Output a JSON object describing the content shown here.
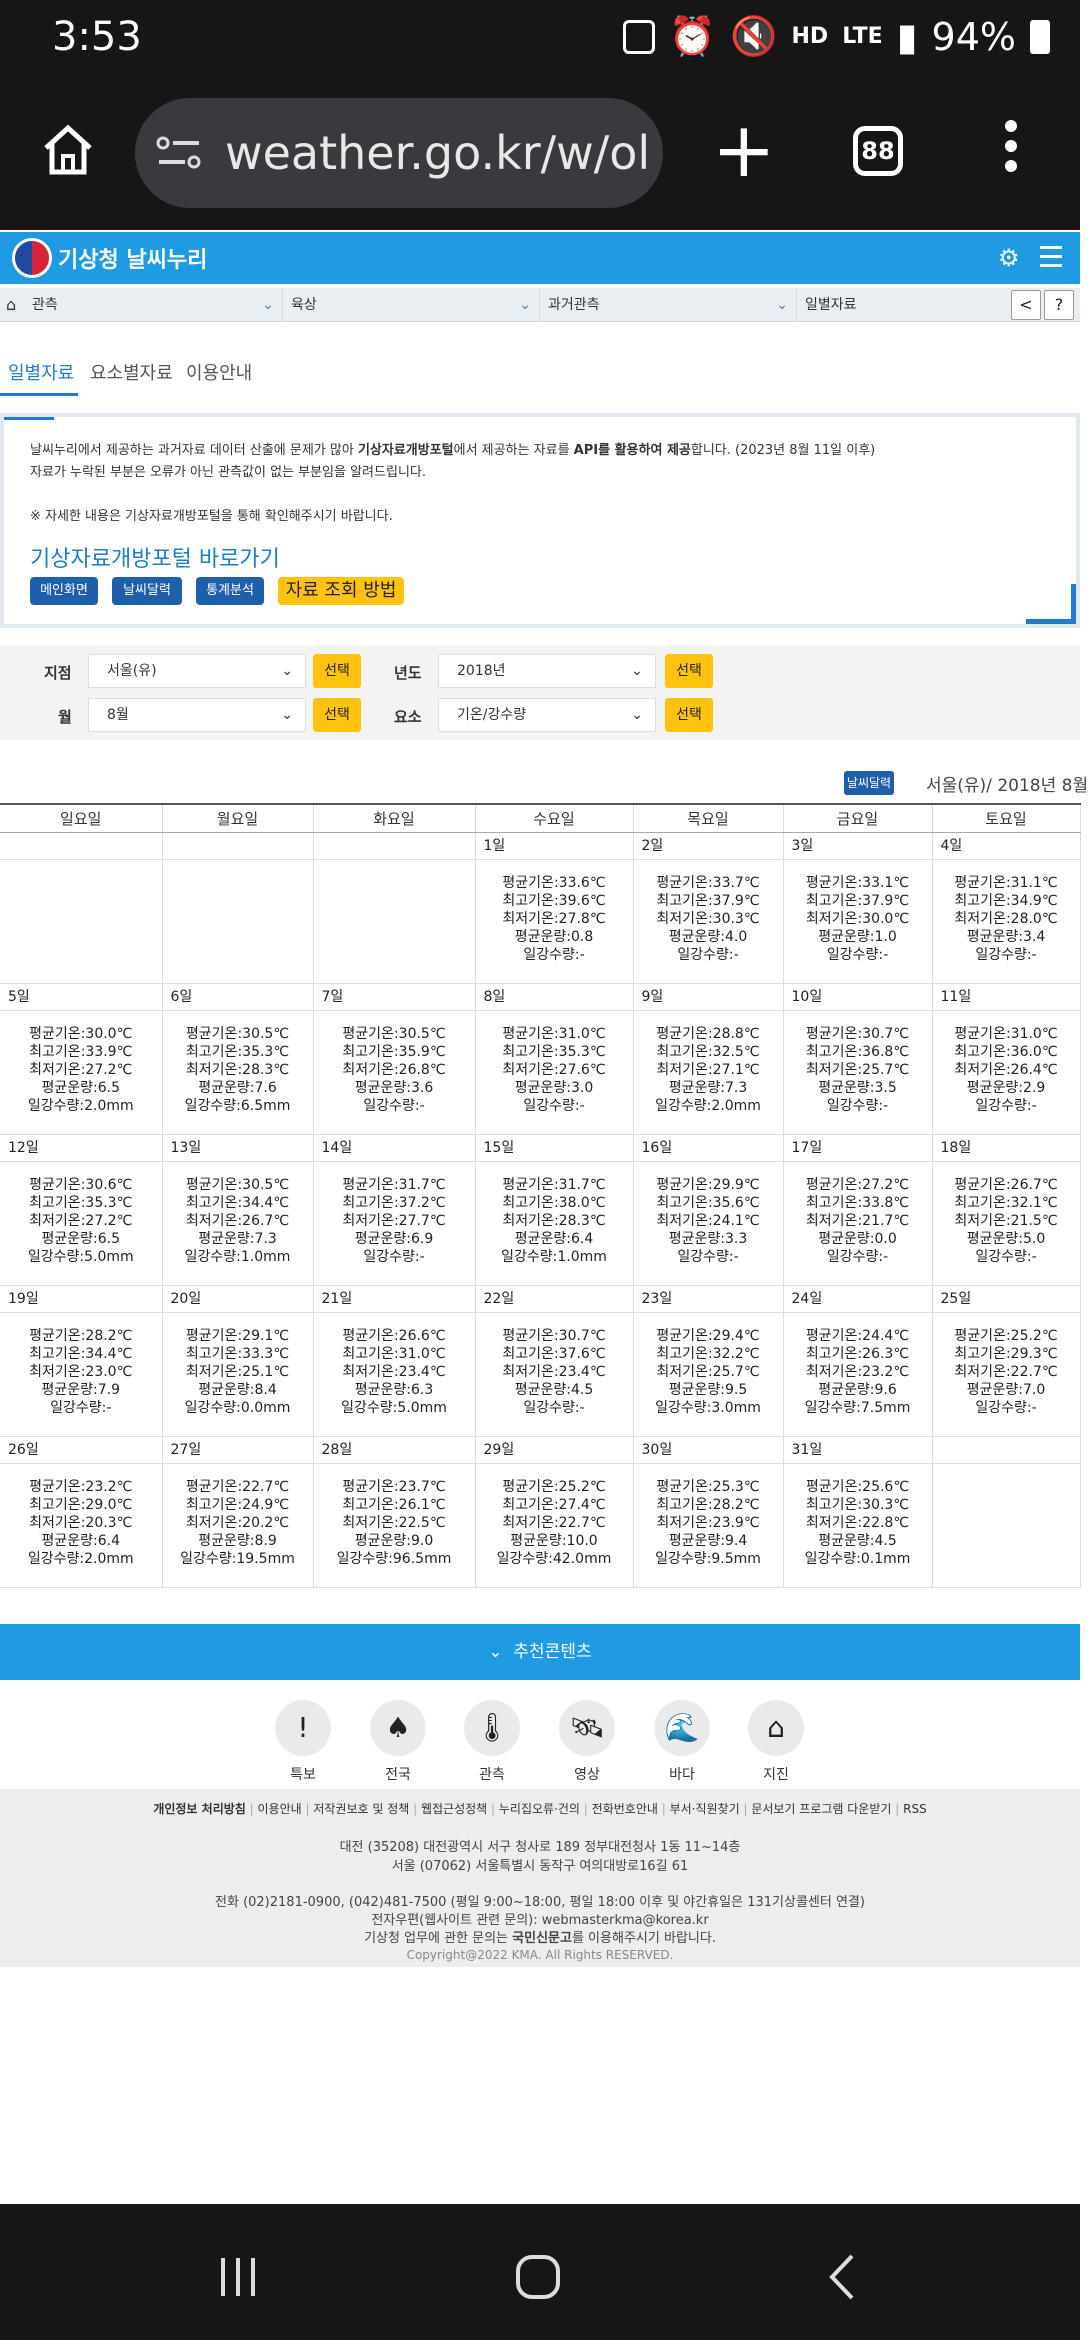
{
  "status": {
    "time": "3:53",
    "battery": "94%",
    "net1": "HD",
    "net2": "LTE"
  },
  "browser": {
    "url": "weather.go.kr/w/ol",
    "tabs_count": "88"
  },
  "site": {
    "name": "기상청 날씨누리"
  },
  "nav": {
    "seg1": "관측",
    "seg2": "육상",
    "seg3": "과거관측",
    "seg4": "일별자료",
    "help": "?"
  },
  "tabs": [
    "일별자료",
    "요소별자료",
    "이용안내"
  ],
  "notice": {
    "line1_a": "날씨누리에서 제공하는 과거자료 데이터 산출에 문제가 많아 ",
    "line1_b": "기상자료개방포털",
    "line1_c": "에서 제공하는 자료를 ",
    "line1_d": "API를 활용하여 제공",
    "line1_e": "합니다. (2023년 8월 11일 이후)",
    "line2": "자료가 누락된 부분은 오류가 아닌 관측값이 없는 부분임을 알려드립니다.",
    "line3": "※ 자세한 내용은 기상자료개방포털을 통해 확인해주시기 바랍니다.",
    "title": "기상자료개방포털 바로가기",
    "btn_main": "메인화면",
    "btn_cal": "날씨달력",
    "btn_stat": "통계분석",
    "btn_howto": "자료 조회 방법"
  },
  "filters": {
    "station_label": "지점",
    "station_value": "서울(유)",
    "year_label": "년도",
    "year_value": "2018년",
    "month_label": "월",
    "month_value": "8월",
    "element_label": "요소",
    "element_value": "기온/강수량",
    "select_label": "선택"
  },
  "calendar_header": {
    "badge": "날씨달력",
    "info": "서울(유)/ 2018년 8월"
  },
  "weekdays": [
    "일요일",
    "월요일",
    "화요일",
    "수요일",
    "목요일",
    "금요일",
    "토요일"
  ],
  "field_labels": {
    "avg": "평균기온",
    "max": "최고기온",
    "min": "최저기온",
    "cloud": "평균운량",
    "rain": "일강수량"
  },
  "weeks": [
    [
      null,
      null,
      null,
      {
        "day": "1일",
        "avg": "33.6℃",
        "max": "39.6℃",
        "min": "27.8℃",
        "cloud": "0.8",
        "rain": "-"
      },
      {
        "day": "2일",
        "avg": "33.7℃",
        "max": "37.9℃",
        "min": "30.3℃",
        "cloud": "4.0",
        "rain": "-"
      },
      {
        "day": "3일",
        "avg": "33.1℃",
        "max": "37.9℃",
        "min": "30.0℃",
        "cloud": "1.0",
        "rain": "-"
      },
      {
        "day": "4일",
        "avg": "31.1℃",
        "max": "34.9℃",
        "min": "28.0℃",
        "cloud": "3.4",
        "rain": "-"
      }
    ],
    [
      {
        "day": "5일",
        "avg": "30.0℃",
        "max": "33.9℃",
        "min": "27.2℃",
        "cloud": "6.5",
        "rain": "2.0mm"
      },
      {
        "day": "6일",
        "avg": "30.5℃",
        "max": "35.3℃",
        "min": "28.3℃",
        "cloud": "7.6",
        "rain": "6.5mm"
      },
      {
        "day": "7일",
        "avg": "30.5℃",
        "max": "35.9℃",
        "min": "26.8℃",
        "cloud": "3.6",
        "rain": "-"
      },
      {
        "day": "8일",
        "avg": "31.0℃",
        "max": "35.3℃",
        "min": "27.6℃",
        "cloud": "3.0",
        "rain": "-"
      },
      {
        "day": "9일",
        "avg": "28.8℃",
        "max": "32.5℃",
        "min": "27.1℃",
        "cloud": "7.3",
        "rain": "2.0mm"
      },
      {
        "day": "10일",
        "avg": "30.7℃",
        "max": "36.8℃",
        "min": "25.7℃",
        "cloud": "3.5",
        "rain": "-"
      },
      {
        "day": "11일",
        "avg": "31.0℃",
        "max": "36.0℃",
        "min": "26.4℃",
        "cloud": "2.9",
        "rain": "-"
      }
    ],
    [
      {
        "day": "12일",
        "avg": "30.6℃",
        "max": "35.3℃",
        "min": "27.2℃",
        "cloud": "6.5",
        "rain": "5.0mm"
      },
      {
        "day": "13일",
        "avg": "30.5℃",
        "max": "34.4℃",
        "min": "26.7℃",
        "cloud": "7.3",
        "rain": "1.0mm"
      },
      {
        "day": "14일",
        "avg": "31.7℃",
        "max": "37.2℃",
        "min": "27.7℃",
        "cloud": "6.9",
        "rain": "-"
      },
      {
        "day": "15일",
        "avg": "31.7℃",
        "max": "38.0℃",
        "min": "28.3℃",
        "cloud": "6.4",
        "rain": "1.0mm"
      },
      {
        "day": "16일",
        "avg": "29.9℃",
        "max": "35.6℃",
        "min": "24.1℃",
        "cloud": "3.3",
        "rain": "-"
      },
      {
        "day": "17일",
        "avg": "27.2℃",
        "max": "33.8℃",
        "min": "21.7℃",
        "cloud": "0.0",
        "rain": "-"
      },
      {
        "day": "18일",
        "avg": "26.7℃",
        "max": "32.1℃",
        "min": "21.5℃",
        "cloud": "5.0",
        "rain": "-"
      }
    ],
    [
      {
        "day": "19일",
        "avg": "28.2℃",
        "max": "34.4℃",
        "min": "23.0℃",
        "cloud": "7.9",
        "rain": "-"
      },
      {
        "day": "20일",
        "avg": "29.1℃",
        "max": "33.3℃",
        "min": "25.1℃",
        "cloud": "8.4",
        "rain": "0.0mm"
      },
      {
        "day": "21일",
        "avg": "26.6℃",
        "max": "31.0℃",
        "min": "23.4℃",
        "cloud": "6.3",
        "rain": "5.0mm"
      },
      {
        "day": "22일",
        "avg": "30.7℃",
        "max": "37.6℃",
        "min": "23.4℃",
        "cloud": "4.5",
        "rain": "-"
      },
      {
        "day": "23일",
        "avg": "29.4℃",
        "max": "32.2℃",
        "min": "25.7℃",
        "cloud": "9.5",
        "rain": "3.0mm"
      },
      {
        "day": "24일",
        "avg": "24.4℃",
        "max": "26.3℃",
        "min": "23.2℃",
        "cloud": "9.6",
        "rain": "7.5mm"
      },
      {
        "day": "25일",
        "avg": "25.2℃",
        "max": "29.3℃",
        "min": "22.7℃",
        "cloud": "7.0",
        "rain": "-"
      }
    ],
    [
      {
        "day": "26일",
        "avg": "23.2℃",
        "max": "29.0℃",
        "min": "20.3℃",
        "cloud": "6.4",
        "rain": "2.0mm"
      },
      {
        "day": "27일",
        "avg": "22.7℃",
        "max": "24.9℃",
        "min": "20.2℃",
        "cloud": "8.9",
        "rain": "19.5mm"
      },
      {
        "day": "28일",
        "avg": "23.7℃",
        "max": "26.1℃",
        "min": "22.5℃",
        "cloud": "9.0",
        "rain": "96.5mm"
      },
      {
        "day": "29일",
        "avg": "25.2℃",
        "max": "27.4℃",
        "min": "22.7℃",
        "cloud": "10.0",
        "rain": "42.0mm"
      },
      {
        "day": "30일",
        "avg": "25.3℃",
        "max": "28.2℃",
        "min": "23.9℃",
        "cloud": "9.4",
        "rain": "9.5mm"
      },
      {
        "day": "31일",
        "avg": "25.6℃",
        "max": "30.3℃",
        "min": "22.8℃",
        "cloud": "4.5",
        "rain": "0.1mm"
      },
      null
    ]
  ],
  "recommend": {
    "label": "추천콘텐츠"
  },
  "quick_links": [
    "특보",
    "전국",
    "관측",
    "영상",
    "바다",
    "지진"
  ],
  "footer": {
    "links": [
      "개인정보 처리방침",
      "이용안내",
      "저작권보호 및 정책",
      "웹접근성정책",
      "누리집오류·건의",
      "전화번호안내",
      "부서·직원찾기",
      "문서보기 프로그램 다운받기",
      "RSS"
    ],
    "addr1": "대전 (35208) 대전광역시 서구 청사로 189 정부대전청사 1동 11~14층",
    "addr2": "서울 (07062) 서울특별시 동작구 여의대방로16길 61",
    "phone": "전화 (02)2181-0900, (042)481-7500 (평일 9:00~18:00, 평일 18:00 이후 및 야간휴일은 131기상콜센터 연결)",
    "email": "전자우편(웹사이트 관련 문의): webmasterkma@korea.kr",
    "inquiry_a": "기상청 업무에 관한 문의는 ",
    "inquiry_b": "국민신문고",
    "inquiry_c": "를 이용해주시기 바랍니다.",
    "copyright": "Copyright@2022 KMA. All Rights RESERVED."
  }
}
